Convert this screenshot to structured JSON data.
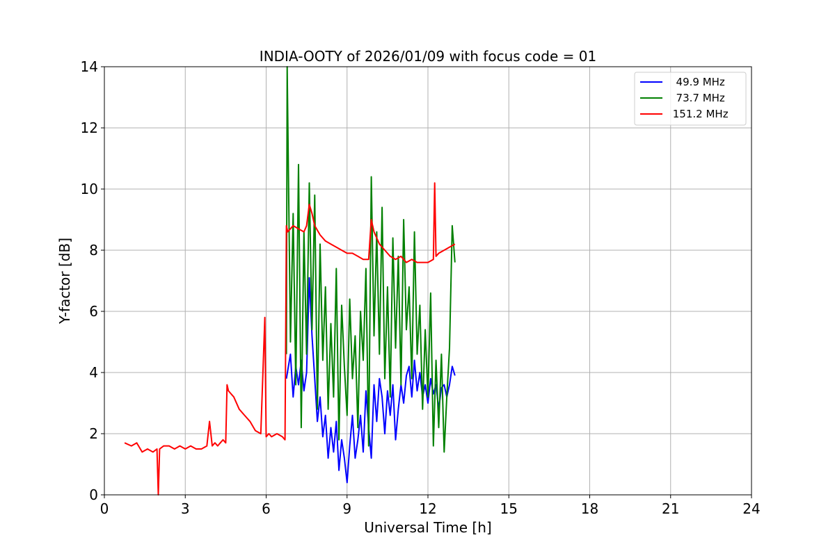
{
  "chart_data": {
    "type": "line",
    "title": "INDIA-OOTY of 2026/01/09 with focus code = 01",
    "xlabel": "Universal Time [h]",
    "ylabel": "Y-factor [dB]",
    "xlim": [
      0,
      24
    ],
    "ylim": [
      0,
      14
    ],
    "xticks": [
      0,
      3,
      6,
      9,
      12,
      15,
      18,
      21,
      24
    ],
    "yticks": [
      0,
      2,
      4,
      6,
      8,
      10,
      12,
      14
    ],
    "grid": true,
    "legend_position": "top-right",
    "series": [
      {
        "name": "49.9 MHz",
        "label": "  49.9 MHz",
        "color": "#0000ff",
        "x": [
          6.75,
          6.9,
          7.0,
          7.1,
          7.2,
          7.3,
          7.4,
          7.5,
          7.6,
          7.7,
          7.8,
          7.9,
          8.0,
          8.1,
          8.2,
          8.3,
          8.4,
          8.5,
          8.6,
          8.7,
          8.8,
          8.9,
          9.0,
          9.1,
          9.2,
          9.3,
          9.4,
          9.5,
          9.6,
          9.7,
          9.8,
          9.9,
          10.0,
          10.1,
          10.2,
          10.3,
          10.4,
          10.5,
          10.6,
          10.7,
          10.8,
          10.9,
          11.0,
          11.1,
          11.2,
          11.3,
          11.4,
          11.5,
          11.6,
          11.7,
          11.8,
          11.9,
          12.0,
          12.1,
          12.2,
          12.3,
          12.4,
          12.5,
          12.6,
          12.7,
          12.8,
          12.9,
          13.0
        ],
        "y": [
          3.8,
          4.6,
          3.2,
          4.2,
          3.6,
          4.4,
          3.4,
          4.0,
          7.1,
          5.2,
          3.8,
          2.4,
          3.2,
          1.9,
          2.6,
          1.2,
          2.2,
          1.4,
          2.4,
          0.8,
          1.8,
          1.2,
          0.4,
          1.6,
          2.6,
          1.2,
          1.8,
          2.6,
          1.4,
          3.4,
          2.2,
          1.2,
          3.6,
          2.4,
          3.8,
          3.2,
          2.0,
          3.4,
          2.6,
          3.6,
          1.8,
          2.8,
          3.6,
          3.0,
          3.9,
          4.2,
          3.2,
          4.4,
          3.4,
          4.0,
          3.2,
          3.6,
          3.0,
          3.8,
          3.3,
          3.6,
          2.8,
          3.5,
          3.6,
          3.2,
          3.6,
          4.2,
          3.9
        ]
      },
      {
        "name": "73.7 MHz",
        "label": "  73.7 MHz",
        "color": "#008000",
        "x": [
          6.75,
          6.78,
          6.9,
          7.0,
          7.1,
          7.2,
          7.3,
          7.4,
          7.5,
          7.6,
          7.7,
          7.8,
          7.9,
          8.0,
          8.1,
          8.2,
          8.3,
          8.4,
          8.5,
          8.6,
          8.7,
          8.8,
          8.9,
          9.0,
          9.1,
          9.2,
          9.3,
          9.4,
          9.5,
          9.6,
          9.7,
          9.8,
          9.9,
          10.0,
          10.1,
          10.2,
          10.3,
          10.4,
          10.5,
          10.6,
          10.7,
          10.8,
          10.9,
          11.0,
          11.1,
          11.2,
          11.3,
          11.4,
          11.5,
          11.6,
          11.7,
          11.8,
          11.9,
          12.0,
          12.1,
          12.2,
          12.3,
          12.4,
          12.5,
          12.6,
          12.7,
          12.8,
          12.9,
          13.0
        ],
        "y": [
          4.6,
          14.0,
          5.0,
          9.2,
          3.6,
          10.8,
          2.2,
          8.6,
          4.6,
          10.2,
          5.4,
          9.8,
          2.8,
          8.2,
          4.4,
          6.8,
          2.8,
          5.6,
          3.2,
          7.4,
          1.8,
          6.2,
          4.2,
          2.6,
          6.4,
          3.8,
          5.2,
          2.2,
          6.0,
          4.4,
          7.4,
          1.6,
          10.4,
          5.2,
          8.6,
          4.6,
          9.4,
          3.8,
          6.8,
          3.2,
          8.4,
          4.8,
          7.8,
          3.6,
          9.0,
          5.4,
          6.8,
          3.8,
          8.6,
          4.6,
          6.2,
          2.8,
          5.4,
          3.2,
          6.6,
          1.6,
          4.4,
          2.2,
          4.6,
          1.4,
          3.2,
          4.8,
          8.8,
          7.6
        ]
      },
      {
        "name": "151.2 MHz",
        "label": " 151.2 MHz",
        "color": "#ff0000",
        "x": [
          0.75,
          1.0,
          1.2,
          1.4,
          1.6,
          1.8,
          1.95,
          2.0,
          2.05,
          2.2,
          2.4,
          2.6,
          2.8,
          3.0,
          3.2,
          3.4,
          3.6,
          3.8,
          3.9,
          4.0,
          4.1,
          4.2,
          4.3,
          4.4,
          4.5,
          4.55,
          4.6,
          4.8,
          5.0,
          5.2,
          5.4,
          5.6,
          5.8,
          5.95,
          6.0,
          6.1,
          6.2,
          6.4,
          6.6,
          6.7,
          6.75,
          6.8,
          7.0,
          7.2,
          7.4,
          7.5,
          7.6,
          7.7,
          7.8,
          8.0,
          8.2,
          8.4,
          8.6,
          8.8,
          9.0,
          9.2,
          9.4,
          9.6,
          9.8,
          9.9,
          10.0,
          10.2,
          10.4,
          10.6,
          10.8,
          11.0,
          11.2,
          11.4,
          11.6,
          11.8,
          12.0,
          12.2,
          12.25,
          12.3,
          12.4,
          12.6,
          12.8,
          13.0
        ],
        "y": [
          1.7,
          1.6,
          1.7,
          1.4,
          1.5,
          1.4,
          1.5,
          0.0,
          1.5,
          1.6,
          1.6,
          1.5,
          1.6,
          1.5,
          1.6,
          1.5,
          1.5,
          1.6,
          2.4,
          1.6,
          1.7,
          1.6,
          1.7,
          1.8,
          1.7,
          3.6,
          3.4,
          3.2,
          2.8,
          2.6,
          2.4,
          2.1,
          2.0,
          5.8,
          1.9,
          2.0,
          1.9,
          2.0,
          1.9,
          1.8,
          8.8,
          8.6,
          8.8,
          8.7,
          8.6,
          8.8,
          9.5,
          9.2,
          8.8,
          8.5,
          8.3,
          8.2,
          8.1,
          8.0,
          7.9,
          7.9,
          7.8,
          7.7,
          7.7,
          9.0,
          8.6,
          8.2,
          8.0,
          7.8,
          7.7,
          7.8,
          7.6,
          7.7,
          7.6,
          7.6,
          7.6,
          7.7,
          10.2,
          7.8,
          7.9,
          8.0,
          8.1,
          8.2
        ]
      }
    ]
  }
}
